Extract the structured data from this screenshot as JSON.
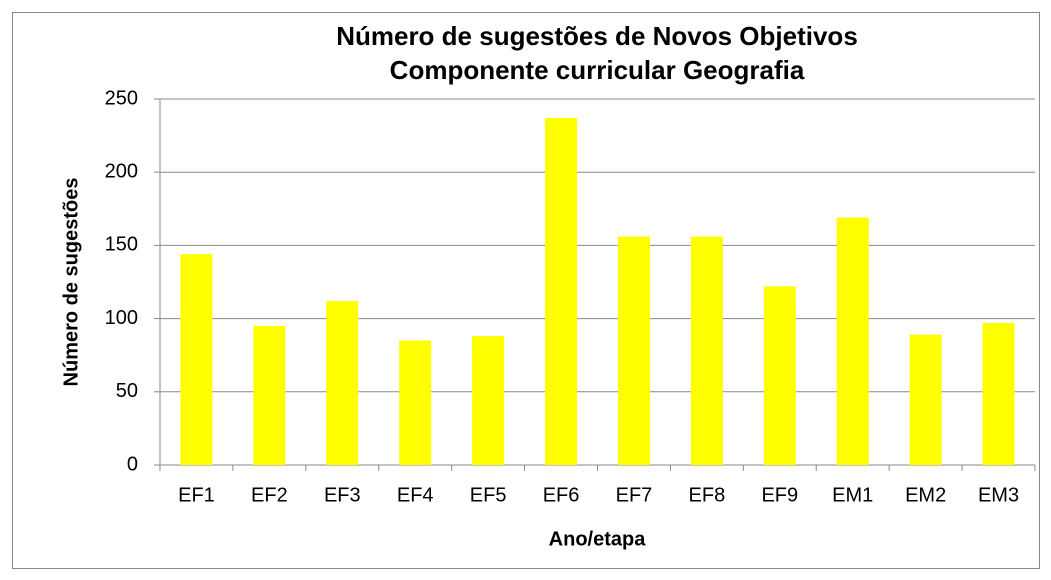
{
  "chart_data": {
    "type": "bar",
    "title": "Número de sugestões de Novos Objetivos",
    "subtitle": "Componente curricular Geografia",
    "x_label": "Ano/etapa",
    "y_label": "Número de sugestões",
    "categories": [
      "EF1",
      "EF2",
      "EF3",
      "EF4",
      "EF5",
      "EF6",
      "EF7",
      "EF8",
      "EF9",
      "EM1",
      "EM2",
      "EM3"
    ],
    "values": [
      144,
      95,
      112,
      85,
      88,
      237,
      156,
      156,
      122,
      169,
      89,
      97
    ],
    "color": "#ffff00",
    "ylim": [
      0,
      250
    ],
    "yticks": [
      0,
      50,
      100,
      150,
      200,
      250
    ],
    "grid": true
  }
}
